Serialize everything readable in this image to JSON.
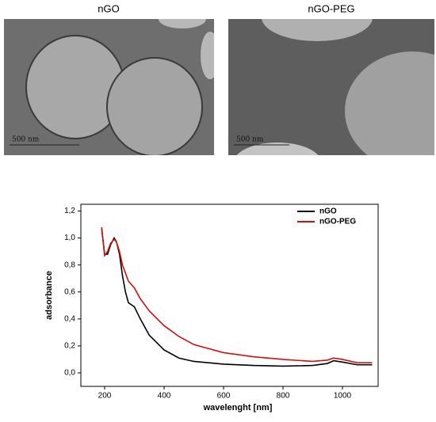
{
  "images": [
    {
      "label": "nGO",
      "scale": "500 nm"
    },
    {
      "label": "nGO-PEG",
      "scale": "500 nm"
    }
  ],
  "chart_data": {
    "type": "line",
    "x_label": "wavelenght [nm]",
    "y_label": "adsorbance",
    "x": [
      190,
      200,
      210,
      220,
      232,
      240,
      250,
      260,
      270,
      280,
      300,
      320,
      350,
      400,
      450,
      500,
      600,
      700,
      800,
      900,
      950,
      970,
      1000,
      1050,
      1100
    ],
    "series": [
      {
        "name": "nGO",
        "color": "#000000",
        "values": [
          1.07,
          0.88,
          0.88,
          0.95,
          1.0,
          0.97,
          0.88,
          0.72,
          0.6,
          0.52,
          0.49,
          0.4,
          0.28,
          0.17,
          0.11,
          0.085,
          0.065,
          0.055,
          0.05,
          0.055,
          0.07,
          0.09,
          0.08,
          0.06,
          0.06
        ]
      },
      {
        "name": "nGO-PEG",
        "color": "#d01010",
        "values": [
          1.08,
          0.87,
          0.9,
          0.96,
          0.99,
          0.97,
          0.9,
          0.8,
          0.74,
          0.68,
          0.63,
          0.55,
          0.46,
          0.35,
          0.27,
          0.21,
          0.15,
          0.12,
          0.1,
          0.085,
          0.095,
          0.11,
          0.1,
          0.075,
          0.075
        ]
      }
    ],
    "xlim": [
      120,
      1120
    ],
    "ylim": [
      -0.1,
      1.25
    ],
    "xticks": [
      200,
      400,
      600,
      800,
      1000
    ],
    "yticks": [
      {
        "value": 0,
        "label": "0,0"
      },
      {
        "value": 0.2,
        "label": "0,2"
      },
      {
        "value": 0.4,
        "label": "0,4"
      },
      {
        "value": 0.6,
        "label": "0,6"
      },
      {
        "value": 0.8,
        "label": "0,8"
      },
      {
        "value": 1.0,
        "label": "1,0"
      },
      {
        "value": 1.2,
        "label": "1,2"
      }
    ],
    "legend": "top-right"
  }
}
